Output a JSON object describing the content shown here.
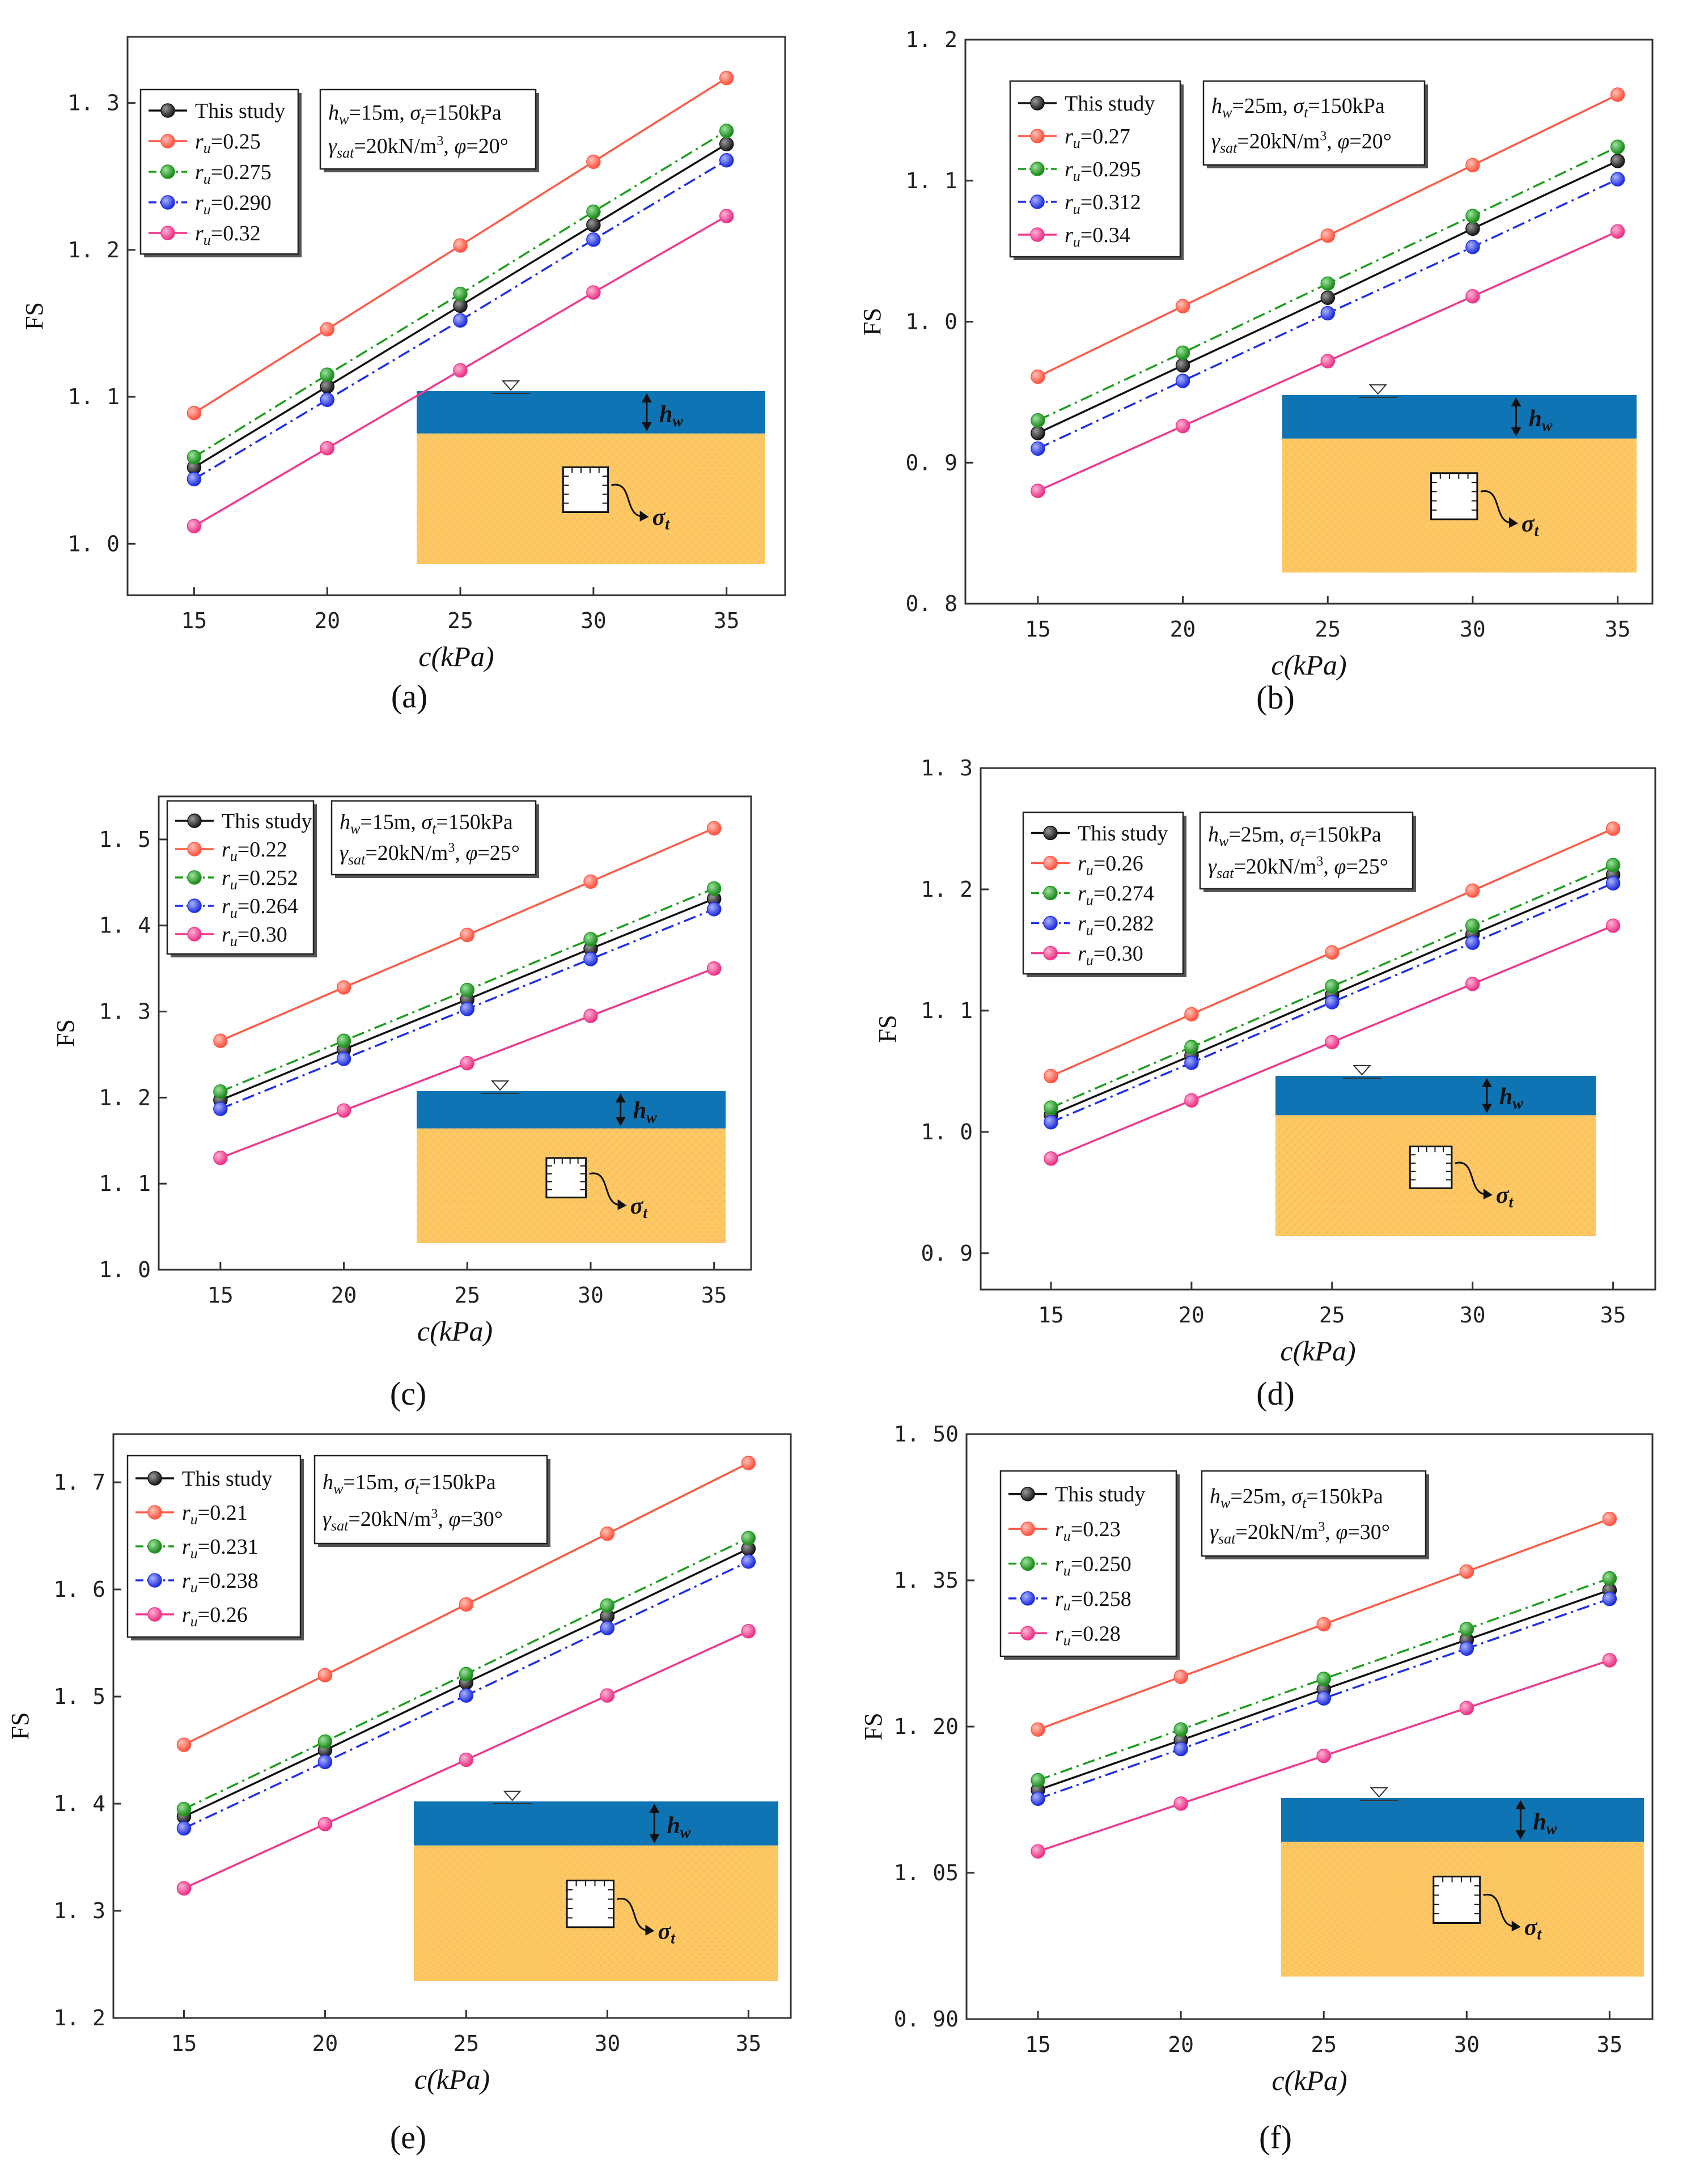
{
  "colors": {
    "this_study": "#111111",
    "series_red": "#ff5a47",
    "series_green": "#1e9e1e",
    "series_blue": "#1f2fe6",
    "series_pink": "#f0388c",
    "water": "#0f74b4",
    "soil": "#fdc863"
  },
  "chart_data": [
    {
      "type": "line",
      "sub_label": "(a)",
      "xlabel": "c(kPa)",
      "ylabel": "FS",
      "x": [
        15,
        20,
        25,
        30,
        35
      ],
      "xlim": [
        12.5,
        37.2
      ],
      "ylim": [
        0.965,
        1.345
      ],
      "xticks": [
        15,
        20,
        25,
        30,
        35
      ],
      "yticks": [
        1.0,
        1.1,
        1.2,
        1.3
      ],
      "ytick_labels": [
        "1. 0",
        "1. 1",
        "1. 2",
        "1. 3"
      ],
      "annotation": [
        "hw=15m, σt=150kPa",
        "γsat=20kN/m3, φ=20°"
      ],
      "series": [
        {
          "name": "This study",
          "style": "solid",
          "color": "this_study",
          "values": [
            1.052,
            1.107,
            1.162,
            1.217,
            1.272
          ]
        },
        {
          "name": "ru=0.25",
          "style": "solid",
          "color": "series_red",
          "values": [
            1.089,
            1.146,
            1.203,
            1.26,
            1.317
          ]
        },
        {
          "name": "ru=0.275",
          "style": "dashdot",
          "color": "series_green",
          "values": [
            1.059,
            1.115,
            1.17,
            1.226,
            1.281
          ]
        },
        {
          "name": "ru=0.290",
          "style": "dashdot",
          "color": "series_blue",
          "values": [
            1.044,
            1.098,
            1.152,
            1.207,
            1.261
          ]
        },
        {
          "name": "ru=0.32",
          "style": "solid",
          "color": "series_pink",
          "values": [
            1.012,
            1.065,
            1.118,
            1.171,
            1.223
          ]
        }
      ]
    },
    {
      "type": "line",
      "sub_label": "(b)",
      "xlabel": "c(kPa)",
      "ylabel": "FS",
      "x": [
        15,
        20,
        25,
        30,
        35
      ],
      "xlim": [
        12.5,
        36.2
      ],
      "ylim": [
        0.8,
        1.2
      ],
      "xticks": [
        15,
        20,
        25,
        30,
        35
      ],
      "yticks": [
        0.8,
        0.9,
        1.0,
        1.1,
        1.2
      ],
      "ytick_labels": [
        "0. 8",
        "0. 9",
        "1. 0",
        "1. 1",
        "1. 2"
      ],
      "annotation": [
        "hw=25m, σt=150kPa",
        "γsat=20kN/m3, φ=20°"
      ],
      "series": [
        {
          "name": "This study",
          "style": "solid",
          "color": "this_study",
          "values": [
            0.921,
            0.969,
            1.017,
            1.066,
            1.114
          ]
        },
        {
          "name": "ru=0.27",
          "style": "solid",
          "color": "series_red",
          "values": [
            0.961,
            1.011,
            1.061,
            1.111,
            1.161
          ]
        },
        {
          "name": "ru=0.295",
          "style": "dashdot",
          "color": "series_green",
          "values": [
            0.93,
            0.978,
            1.027,
            1.075,
            1.124
          ]
        },
        {
          "name": "ru=0.312",
          "style": "dashdot",
          "color": "series_blue",
          "values": [
            0.91,
            0.958,
            1.006,
            1.053,
            1.101
          ]
        },
        {
          "name": "ru=0.34",
          "style": "solid",
          "color": "series_pink",
          "values": [
            0.88,
            0.926,
            0.972,
            1.018,
            1.064
          ]
        }
      ]
    },
    {
      "type": "line",
      "sub_label": "(c)",
      "xlabel": "c(kPa)",
      "ylabel": "FS",
      "x": [
        15,
        20,
        25,
        30,
        35
      ],
      "xlim": [
        12.5,
        36.5
      ],
      "ylim": [
        1.0,
        1.55
      ],
      "xticks": [
        15,
        20,
        25,
        30,
        35
      ],
      "yticks": [
        1.0,
        1.1,
        1.2,
        1.3,
        1.4,
        1.5
      ],
      "ytick_labels": [
        "1. 0",
        "1. 1",
        "1. 2",
        "1. 3",
        "1. 4",
        "1. 5"
      ],
      "annotation": [
        "hw=15m, σt=150kPa",
        "γsat=20kN/m3, φ=25°"
      ],
      "series": [
        {
          "name": "This study",
          "style": "solid",
          "color": "this_study",
          "values": [
            1.197,
            1.256,
            1.314,
            1.373,
            1.431
          ]
        },
        {
          "name": "ru=0.22",
          "style": "solid",
          "color": "series_red",
          "values": [
            1.266,
            1.328,
            1.389,
            1.451,
            1.513
          ]
        },
        {
          "name": "ru=0.252",
          "style": "dashdot",
          "color": "series_green",
          "values": [
            1.207,
            1.266,
            1.325,
            1.384,
            1.443
          ]
        },
        {
          "name": "ru=0.264",
          "style": "dashdot",
          "color": "series_blue",
          "values": [
            1.187,
            1.245,
            1.303,
            1.361,
            1.419
          ]
        },
        {
          "name": "ru=0.30",
          "style": "solid",
          "color": "series_pink",
          "values": [
            1.13,
            1.185,
            1.24,
            1.295,
            1.35
          ]
        }
      ]
    },
    {
      "type": "line",
      "sub_label": "(d)",
      "xlabel": "c(kPa)",
      "ylabel": "FS",
      "x": [
        15,
        20,
        25,
        30,
        35
      ],
      "xlim": [
        12.5,
        36.5
      ],
      "ylim": [
        0.87,
        1.3
      ],
      "xticks": [
        15,
        20,
        25,
        30,
        35
      ],
      "yticks": [
        0.9,
        1.0,
        1.1,
        1.2,
        1.3
      ],
      "ytick_labels": [
        "0. 9",
        "1. 0",
        "1. 1",
        "1. 2",
        "1. 3"
      ],
      "annotation": [
        "hw=25m, σt=150kPa",
        "γsat=20kN/m3, φ=25°"
      ],
      "series": [
        {
          "name": "This study",
          "style": "solid",
          "color": "this_study",
          "values": [
            1.014,
            1.063,
            1.113,
            1.163,
            1.212
          ]
        },
        {
          "name": "ru=0.26",
          "style": "solid",
          "color": "series_red",
          "values": [
            1.046,
            1.097,
            1.148,
            1.199,
            1.25
          ]
        },
        {
          "name": "ru=0.274",
          "style": "dashdot",
          "color": "series_green",
          "values": [
            1.02,
            1.07,
            1.12,
            1.17,
            1.22
          ]
        },
        {
          "name": "ru=0.282",
          "style": "dashdot",
          "color": "series_blue",
          "values": [
            1.008,
            1.057,
            1.107,
            1.156,
            1.205
          ]
        },
        {
          "name": "ru=0.30",
          "style": "solid",
          "color": "series_pink",
          "values": [
            0.978,
            1.026,
            1.074,
            1.122,
            1.17
          ]
        }
      ]
    },
    {
      "type": "line",
      "sub_label": "(e)",
      "xlabel": "c(kPa)",
      "ylabel": "FS",
      "x": [
        15,
        20,
        25,
        30,
        35
      ],
      "xlim": [
        12.5,
        36.5
      ],
      "ylim": [
        1.2,
        1.745
      ],
      "xticks": [
        15,
        20,
        25,
        30,
        35
      ],
      "yticks": [
        1.2,
        1.3,
        1.4,
        1.5,
        1.6,
        1.7
      ],
      "ytick_labels": [
        "1. 2",
        "1. 3",
        "1. 4",
        "1. 5",
        "1. 6",
        "1. 7"
      ],
      "annotation": [
        "hw=15m, σt=150kPa",
        "γsat=20kN/m3, φ=30°"
      ],
      "series": [
        {
          "name": "This study",
          "style": "solid",
          "color": "this_study",
          "values": [
            1.388,
            1.45,
            1.513,
            1.575,
            1.638
          ]
        },
        {
          "name": "ru=0.21",
          "style": "solid",
          "color": "series_red",
          "values": [
            1.455,
            1.52,
            1.586,
            1.652,
            1.718
          ]
        },
        {
          "name": "ru=0.231",
          "style": "dashdot",
          "color": "series_green",
          "values": [
            1.395,
            1.458,
            1.521,
            1.585,
            1.648
          ]
        },
        {
          "name": "ru=0.238",
          "style": "dashdot",
          "color": "series_blue",
          "values": [
            1.377,
            1.439,
            1.501,
            1.564,
            1.626
          ]
        },
        {
          "name": "ru=0.26",
          "style": "solid",
          "color": "series_pink",
          "values": [
            1.321,
            1.381,
            1.441,
            1.501,
            1.561
          ]
        }
      ]
    },
    {
      "type": "line",
      "sub_label": "(f)",
      "xlabel": "c(kPa)",
      "ylabel": "FS",
      "x": [
        15,
        20,
        25,
        30,
        35
      ],
      "xlim": [
        12.5,
        36.5
      ],
      "ylim": [
        0.9,
        1.5
      ],
      "xticks": [
        15,
        20,
        25,
        30,
        35
      ],
      "yticks": [
        0.9,
        1.05,
        1.2,
        1.35,
        1.5
      ],
      "ytick_labels": [
        "0. 90",
        "1. 05",
        "1. 20",
        "1. 35",
        "1. 50"
      ],
      "annotation": [
        "hw=25m, σt=150kPa",
        "γsat=20kN/m3, φ=30°"
      ],
      "series": [
        {
          "name": "This study",
          "style": "solid",
          "color": "this_study",
          "values": [
            1.135,
            1.186,
            1.238,
            1.289,
            1.34
          ]
        },
        {
          "name": "ru=0.23",
          "style": "solid",
          "color": "series_red",
          "values": [
            1.197,
            1.251,
            1.305,
            1.359,
            1.413
          ]
        },
        {
          "name": "ru=0.250",
          "style": "dashdot",
          "color": "series_green",
          "values": [
            1.145,
            1.197,
            1.249,
            1.3,
            1.352
          ]
        },
        {
          "name": "ru=0.258",
          "style": "dashdot",
          "color": "series_blue",
          "values": [
            1.126,
            1.177,
            1.229,
            1.28,
            1.331
          ]
        },
        {
          "name": "ru=0.28",
          "style": "solid",
          "color": "series_pink",
          "values": [
            1.072,
            1.121,
            1.17,
            1.219,
            1.268
          ]
        }
      ]
    }
  ]
}
